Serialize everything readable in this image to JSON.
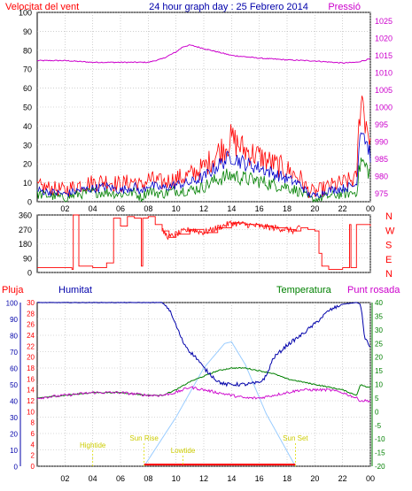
{
  "header": {
    "left_title": "Velocitat del vent",
    "center_title": "24 hour graph day : 25 Febrero 2014",
    "right_title": "Pressió"
  },
  "colors": {
    "wind_red": "#ff0000",
    "wind_blue": "#0000cc",
    "wind_green": "#008000",
    "pressure": "#cc00cc",
    "humidity": "#0000aa",
    "temperature": "#008000",
    "dewpoint": "#cc00cc",
    "rain": "#ff0000",
    "solar": "#99ccff",
    "sun_markers": "#dddd00",
    "grid": "#b3b3b3"
  },
  "chart_data": [
    {
      "type": "line",
      "id": "wind-pressure",
      "x_ticks": [
        "02",
        "04",
        "06",
        "08",
        "10",
        "12",
        "14",
        "16",
        "18",
        "20",
        "22",
        "00"
      ],
      "y_left_ticks": [
        0,
        10,
        20,
        30,
        40,
        50,
        60,
        70,
        80,
        90,
        100
      ],
      "y_left_range": [
        0,
        100
      ],
      "y_right_ticks": [
        975,
        980,
        985,
        990,
        995,
        1000,
        1005,
        1010,
        1015,
        1020,
        1025
      ],
      "y_right_range": [
        972.5,
        1027.5
      ],
      "x_range": [
        0,
        24
      ],
      "pressure": {
        "x": [
          0,
          2,
          4,
          6,
          8,
          9,
          10,
          10.5,
          11,
          11.5,
          12,
          13,
          14,
          16,
          18,
          20,
          22,
          23,
          23.5,
          24
        ],
        "y": [
          1013.5,
          1013.5,
          1013,
          1013,
          1013,
          1014,
          1016,
          1017.5,
          1018,
          1017.5,
          1017,
          1016,
          1015,
          1014.2,
          1013.7,
          1013.4,
          1012.8,
          1013,
          1013.5,
          1014
        ]
      },
      "series": [
        {
          "name": "gust",
          "x": [
            0,
            1,
            2,
            3,
            4,
            5,
            6,
            7,
            7.5,
            8,
            9,
            10,
            11,
            12,
            13,
            14,
            15,
            16,
            17,
            18,
            19,
            19.5,
            20,
            21,
            22,
            23,
            23.3,
            23.7,
            24
          ],
          "y": [
            8,
            7,
            6,
            9,
            10,
            11,
            9,
            11,
            8,
            12,
            10,
            12,
            14,
            18,
            26,
            33,
            27,
            24,
            20,
            17,
            12,
            6,
            5,
            8,
            10,
            12,
            58,
            42,
            33
          ]
        },
        {
          "name": "average",
          "x": [
            0,
            1,
            2,
            3,
            4,
            5,
            6,
            7,
            7.5,
            8,
            9,
            10,
            11,
            12,
            13,
            14,
            15,
            16,
            17,
            18,
            19,
            19.5,
            20,
            21,
            22,
            23,
            23.3,
            23.7,
            24
          ],
          "y": [
            6,
            5,
            4,
            6,
            7,
            8,
            6,
            8,
            5,
            9,
            7,
            9,
            10,
            13,
            19,
            24,
            20,
            18,
            15,
            12,
            9,
            4,
            3,
            6,
            7,
            9,
            42,
            32,
            25
          ]
        },
        {
          "name": "low",
          "x": [
            0,
            1,
            2,
            3,
            4,
            5,
            6,
            7,
            7.5,
            8,
            9,
            10,
            11,
            12,
            13,
            14,
            15,
            16,
            17,
            18,
            19,
            19.5,
            20,
            21,
            22,
            23,
            23.3,
            23.7,
            24
          ],
          "y": [
            4,
            3,
            2,
            4,
            5,
            5,
            4,
            5,
            2,
            6,
            4,
            6,
            6,
            8,
            12,
            14,
            12,
            11,
            9,
            8,
            5,
            2,
            1,
            3,
            4,
            5,
            22,
            18,
            15
          ]
        }
      ]
    },
    {
      "type": "line",
      "id": "wind-direction",
      "x_range": [
        0,
        24
      ],
      "y_left_ticks": [
        0,
        90,
        180,
        270,
        360
      ],
      "y_left_range": [
        0,
        360
      ],
      "y_right_ticks": [
        "N",
        "W",
        "S",
        "E",
        "N"
      ],
      "series": [
        {
          "name": "direction",
          "x": [
            0,
            2,
            2.5,
            2.6,
            3,
            4,
            4.5,
            5,
            5.5,
            6,
            6.5,
            7,
            7.5,
            7.6,
            8,
            8.5,
            9,
            9.5,
            10,
            11,
            12,
            13,
            14,
            15,
            16,
            17,
            18,
            18.5,
            19,
            19.5,
            20,
            20.3,
            20.5,
            21,
            22,
            22.5,
            22.6,
            23,
            24
          ],
          "y": [
            30,
            30,
            20,
            360,
            40,
            30,
            30,
            60,
            340,
            290,
            350,
            340,
            40,
            340,
            350,
            300,
            260,
            220,
            240,
            270,
            250,
            280,
            310,
            300,
            290,
            280,
            270,
            260,
            280,
            270,
            260,
            120,
            40,
            20,
            30,
            300,
            30,
            300,
            290
          ]
        }
      ]
    },
    {
      "type": "line",
      "id": "humidity-temperature",
      "header": {
        "rain_label": "Pluja",
        "humidity_label": "Humitat",
        "temperature_label": "Temperatura",
        "dewpoint_label": "Punt rosada"
      },
      "x_ticks": [
        "02",
        "04",
        "06",
        "08",
        "10",
        "12",
        "14",
        "16",
        "18",
        "20",
        "22",
        "00"
      ],
      "y_humidity_ticks": [
        0,
        10,
        20,
        30,
        40,
        50,
        60,
        70,
        80,
        90,
        100
      ],
      "y_humidity_range": [
        0,
        100
      ],
      "y_rain_ticks": [
        0,
        2,
        4,
        6,
        8,
        10,
        12,
        14,
        16,
        18,
        20,
        22,
        24,
        26,
        28,
        30
      ],
      "y_rain_range": [
        0,
        30
      ],
      "y_temp_ticks": [
        40,
        35,
        30,
        25,
        20,
        15,
        10,
        5,
        0,
        -5,
        -10,
        -15,
        -20
      ],
      "y_temp_range": [
        -20,
        40
      ],
      "sun_labels": {
        "high_tide": "Hightide",
        "sun_rise": "Sun Rise",
        "low_tide": "Lowtide",
        "sun_set": "Sun Set"
      },
      "sun_markers": {
        "high_tide": 4,
        "sun_rise": 7.7,
        "low_tide": 10.5,
        "sun_set": 18.6
      },
      "humidity": {
        "x": [
          0,
          2,
          4,
          6,
          8,
          9,
          9.5,
          10,
          10.5,
          11,
          11.5,
          12,
          12.5,
          13,
          13.5,
          14,
          15,
          16,
          16.5,
          17,
          18,
          19,
          20,
          21,
          22,
          23,
          23.3,
          23.6,
          24
        ],
        "y": [
          100,
          100,
          100,
          100,
          100,
          100,
          96,
          86,
          76,
          70,
          66,
          60,
          56,
          52,
          50,
          50,
          50,
          51,
          55,
          66,
          74,
          80,
          87,
          95,
          99,
          100,
          99,
          78,
          73
        ]
      },
      "temperature": {
        "x": [
          0,
          2,
          4,
          6,
          8,
          9,
          10,
          11,
          12,
          13,
          14,
          15,
          16,
          17,
          18,
          19,
          20,
          21,
          22,
          23,
          23.3,
          23.7,
          24
        ],
        "y": [
          5,
          6,
          7,
          7,
          6,
          6,
          8,
          11,
          13,
          15,
          16,
          16,
          15,
          14,
          12,
          11,
          10,
          9,
          8,
          6,
          10,
          9,
          9
        ]
      },
      "dewpoint": {
        "x": [
          0,
          2,
          4,
          6,
          8,
          9,
          10,
          11,
          12,
          13,
          14,
          15,
          16,
          17,
          18,
          19,
          20,
          21,
          22,
          23,
          23.3,
          23.7,
          24
        ],
        "y": [
          5,
          6,
          7,
          7,
          6,
          6,
          7,
          9,
          8,
          7,
          6,
          5,
          5,
          6,
          7,
          8,
          8,
          8,
          7,
          5,
          4,
          4,
          4
        ]
      },
      "solar": {
        "x": [
          7.7,
          10,
          12,
          13.5,
          14,
          15,
          16.5,
          18.6
        ],
        "y": [
          0,
          30,
          60,
          75,
          76,
          62,
          32,
          0
        ]
      },
      "rain": {
        "x": [
          7.7,
          18.6
        ],
        "y": [
          0.3,
          0.3
        ]
      }
    }
  ]
}
